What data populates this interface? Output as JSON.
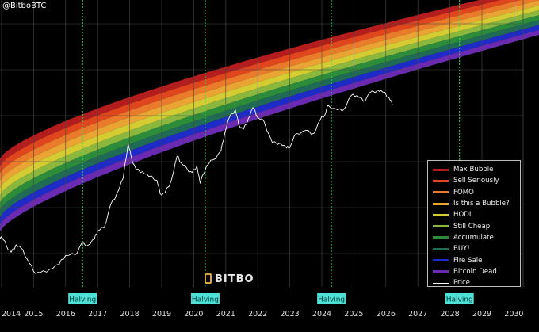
{
  "source_handle": "@BitboBTC",
  "brand": "BITBO",
  "colors": {
    "background": "#000000",
    "grid": "#4a4a4a",
    "halving_line": "#33dd55",
    "halving_box": "#4fe0d6",
    "price": "#ffffff",
    "axis_text": "#e0e0e0"
  },
  "chart_data": {
    "type": "area",
    "x_ticks": [
      "2014",
      "2015",
      "2016",
      "2017",
      "2018",
      "2019",
      "2020",
      "2021",
      "2022",
      "2023",
      "2024",
      "2025",
      "2026",
      "2027",
      "2028",
      "2029",
      "2030"
    ],
    "xlim": [
      2014,
      2030
    ],
    "y_scale": "log",
    "ylim_usd": [
      80,
      2500000
    ],
    "grid": true,
    "legend_position": "bottom-right",
    "halvings": [
      {
        "year": 2016.53,
        "label": "Halving"
      },
      {
        "year": 2020.36,
        "label": "Halving"
      },
      {
        "year": 2024.3,
        "label": "Halving"
      },
      {
        "year": 2028.3,
        "label": "Halving"
      }
    ],
    "bands": [
      {
        "name": "Max Bubble",
        "color": "#b31d1d"
      },
      {
        "name": "Sell Seriously",
        "color": "#e0461e"
      },
      {
        "name": "FOMO",
        "color": "#ea7b2b"
      },
      {
        "name": "Is this a Bubble?",
        "color": "#eaa434"
      },
      {
        "name": "HODL",
        "color": "#d4cc32"
      },
      {
        "name": "Still Cheap",
        "color": "#8bb83c"
      },
      {
        "name": "Accumulate",
        "color": "#2c8c3a"
      },
      {
        "name": "BUY!",
        "color": "#1f6b55"
      },
      {
        "name": "Fire Sale",
        "color": "#1f2bc7"
      },
      {
        "name": "Bitcoin Dead",
        "color": "#6a2bb2"
      }
    ],
    "price_series": {
      "name": "Price",
      "points": [
        [
          2013.9,
          750
        ],
        [
          2014.0,
          820
        ],
        [
          2014.15,
          600
        ],
        [
          2014.3,
          480
        ],
        [
          2014.45,
          620
        ],
        [
          2014.6,
          560
        ],
        [
          2014.8,
          380
        ],
        [
          2015.0,
          250
        ],
        [
          2015.2,
          240
        ],
        [
          2015.5,
          270
        ],
        [
          2015.8,
          320
        ],
        [
          2016.0,
          430
        ],
        [
          2016.3,
          440
        ],
        [
          2016.5,
          650
        ],
        [
          2016.7,
          610
        ],
        [
          2016.9,
          760
        ],
        [
          2017.0,
          990
        ],
        [
          2017.2,
          1100
        ],
        [
          2017.4,
          2400
        ],
        [
          2017.6,
          3500
        ],
        [
          2017.8,
          6000
        ],
        [
          2017.95,
          19000
        ],
        [
          2018.05,
          12000
        ],
        [
          2018.2,
          8000
        ],
        [
          2018.4,
          7400
        ],
        [
          2018.6,
          6300
        ],
        [
          2018.85,
          5500
        ],
        [
          2018.95,
          3500
        ],
        [
          2019.1,
          3600
        ],
        [
          2019.3,
          5500
        ],
        [
          2019.48,
          12500
        ],
        [
          2019.6,
          10000
        ],
        [
          2019.8,
          8000
        ],
        [
          2019.95,
          7200
        ],
        [
          2020.1,
          9000
        ],
        [
          2020.2,
          5000
        ],
        [
          2020.4,
          9000
        ],
        [
          2020.6,
          11000
        ],
        [
          2020.85,
          15000
        ],
        [
          2020.98,
          29000
        ],
        [
          2021.1,
          45000
        ],
        [
          2021.3,
          60000
        ],
        [
          2021.4,
          37000
        ],
        [
          2021.55,
          31000
        ],
        [
          2021.7,
          44000
        ],
        [
          2021.85,
          65000
        ],
        [
          2022.0,
          46000
        ],
        [
          2022.2,
          40000
        ],
        [
          2022.45,
          20000
        ],
        [
          2022.7,
          19500
        ],
        [
          2022.9,
          16500
        ],
        [
          2023.0,
          16800
        ],
        [
          2023.2,
          27000
        ],
        [
          2023.5,
          30000
        ],
        [
          2023.75,
          27000
        ],
        [
          2023.95,
          43000
        ],
        [
          2024.1,
          51000
        ],
        [
          2024.2,
          70000
        ],
        [
          2024.5,
          60000
        ],
        [
          2024.7,
          62000
        ],
        [
          2024.9,
          96000
        ],
        [
          2025.1,
          98000
        ],
        [
          2025.3,
          80000
        ],
        [
          2025.5,
          108000
        ],
        [
          2025.75,
          118000
        ],
        [
          2025.9,
          110000
        ],
        [
          2026.1,
          90000
        ],
        [
          2026.2,
          72000
        ]
      ]
    }
  },
  "legend": {
    "items": [
      "Max Bubble",
      "Sell Seriously",
      "FOMO",
      "Is this a Bubble?",
      "HODL",
      "Still Cheap",
      "Accumulate",
      "BUY!",
      "Fire Sale",
      "Bitcoin Dead",
      "Price"
    ]
  }
}
